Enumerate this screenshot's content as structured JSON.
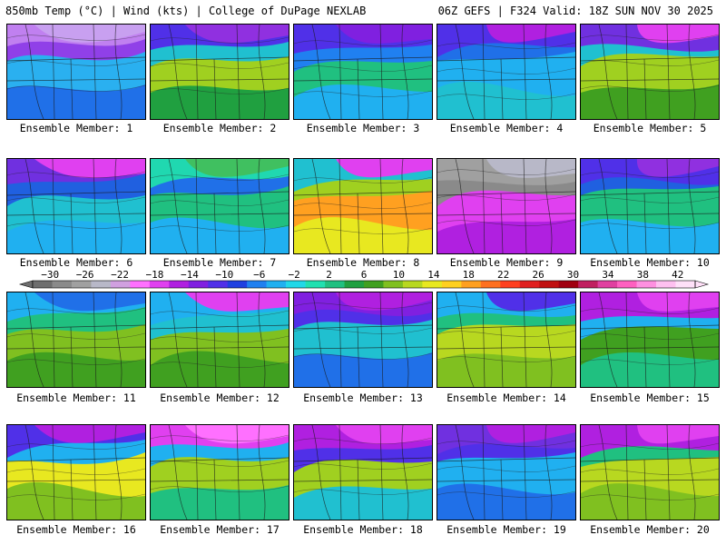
{
  "header": {
    "left": "850mb Temp (°C) | Wind (kts) | College of DuPage NEXLAB",
    "right": "06Z GEFS | F324 Valid: 18Z SUN NOV 30 2025"
  },
  "caption_prefix": "Ensemble Member:",
  "members": [
    {
      "label": "Ensemble Member: 1"
    },
    {
      "label": "Ensemble Member: 2"
    },
    {
      "label": "Ensemble Member: 3"
    },
    {
      "label": "Ensemble Member: 4"
    },
    {
      "label": "Ensemble Member: 5"
    },
    {
      "label": "Ensemble Member: 6"
    },
    {
      "label": "Ensemble Member: 7"
    },
    {
      "label": "Ensemble Member: 8"
    },
    {
      "label": "Ensemble Member: 9"
    },
    {
      "label": "Ensemble Member: 10"
    },
    {
      "label": "Ensemble Member: 11"
    },
    {
      "label": "Ensemble Member: 12"
    },
    {
      "label": "Ensemble Member: 13"
    },
    {
      "label": "Ensemble Member: 14"
    },
    {
      "label": "Ensemble Member: 15"
    },
    {
      "label": "Ensemble Member: 16"
    },
    {
      "label": "Ensemble Member: 17"
    },
    {
      "label": "Ensemble Member: 18"
    },
    {
      "label": "Ensemble Member: 19"
    },
    {
      "label": "Ensemble Member: 20"
    }
  ],
  "colorbar": {
    "ticks": [
      "−30",
      "−26",
      "−22",
      "−18",
      "−14",
      "−10",
      "−6",
      "−2",
      "2",
      "6",
      "10",
      "14",
      "18",
      "22",
      "26",
      "30",
      "34",
      "38",
      "42"
    ],
    "colors": [
      "#6e6e6e",
      "#8a8a8a",
      "#a0a0a0",
      "#b8b8c8",
      "#d0a0e0",
      "#ff70ff",
      "#e040f0",
      "#b020e0",
      "#8020e0",
      "#5030e8",
      "#2040e0",
      "#2080f0",
      "#20b0f0",
      "#20d8e8",
      "#20e0b0",
      "#20c080",
      "#20a040",
      "#40a020",
      "#80c020",
      "#b8d820",
      "#e8e820",
      "#ffd020",
      "#ffa020",
      "#ff7020",
      "#ff4020",
      "#e02020",
      "#c01010",
      "#a00010",
      "#c02060",
      "#e040a0",
      "#ff60c0",
      "#ff90e0",
      "#ffc0f0",
      "#ffe0f8"
    ]
  }
}
